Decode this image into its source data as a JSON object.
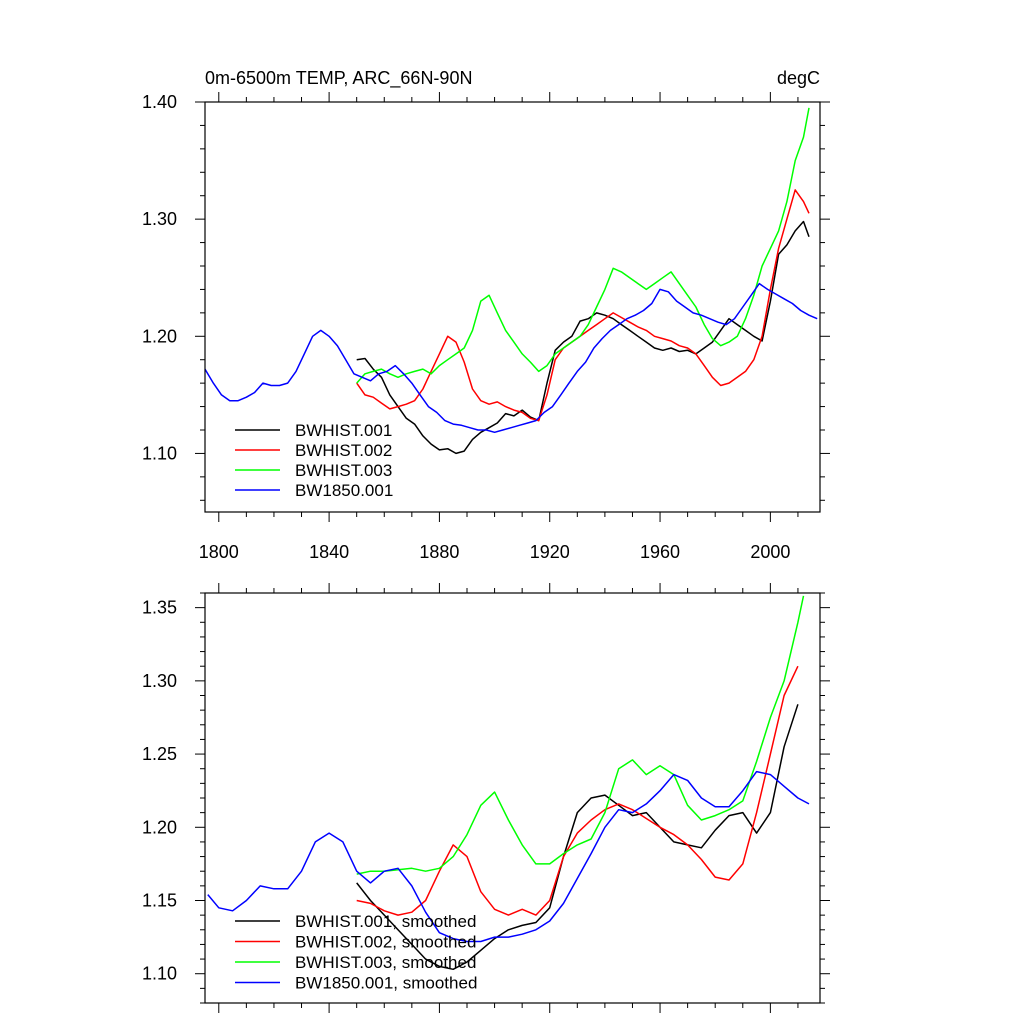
{
  "chart_data": [
    {
      "type": "line",
      "title": "0m-6500m TEMP, ARC_66N-90N",
      "units": "degC",
      "xlabel": "",
      "ylabel": "",
      "xlim": [
        1795,
        2018
      ],
      "ylim": [
        1.05,
        1.4
      ],
      "xticks": [
        1800,
        1840,
        1880,
        1920,
        1960,
        2000
      ],
      "xtick_labels": [
        "1800",
        "1840",
        "1880",
        "1920",
        "1960",
        "2000"
      ],
      "yticks": [
        1.1,
        1.2,
        1.3,
        1.4
      ],
      "ytick_labels": [
        "1.10",
        "1.20",
        "1.30",
        "1.40"
      ],
      "show_x_labels": true,
      "grid": false,
      "legend_position": "bottom-left",
      "series": [
        {
          "name": "BWHIST.001",
          "color": "#000000",
          "x": [
            1850,
            1853,
            1856,
            1859,
            1862,
            1865,
            1868,
            1871,
            1874,
            1877,
            1880,
            1883,
            1886,
            1889,
            1892,
            1895,
            1898,
            1901,
            1904,
            1907,
            1910,
            1913,
            1916,
            1919,
            1922,
            1925,
            1928,
            1931,
            1934,
            1937,
            1940,
            1943,
            1946,
            1949,
            1952,
            1955,
            1958,
            1961,
            1964,
            1967,
            1970,
            1973,
            1976,
            1979,
            1982,
            1985,
            1988,
            1991,
            1994,
            1997,
            2000,
            2003,
            2006,
            2009,
            2012,
            2014
          ],
          "y": [
            1.18,
            1.181,
            1.172,
            1.165,
            1.15,
            1.14,
            1.13,
            1.125,
            1.115,
            1.108,
            1.103,
            1.104,
            1.1,
            1.102,
            1.112,
            1.118,
            1.122,
            1.126,
            1.134,
            1.132,
            1.137,
            1.131,
            1.128,
            1.16,
            1.188,
            1.195,
            1.2,
            1.213,
            1.215,
            1.22,
            1.218,
            1.215,
            1.21,
            1.205,
            1.2,
            1.195,
            1.19,
            1.188,
            1.19,
            1.187,
            1.188,
            1.185,
            1.19,
            1.195,
            1.205,
            1.215,
            1.21,
            1.205,
            1.2,
            1.196,
            1.23,
            1.27,
            1.278,
            1.29,
            1.298,
            1.285
          ]
        },
        {
          "name": "BWHIST.002",
          "color": "#ff0000",
          "x": [
            1850,
            1853,
            1856,
            1859,
            1862,
            1865,
            1868,
            1871,
            1874,
            1877,
            1880,
            1883,
            1886,
            1889,
            1892,
            1895,
            1898,
            1901,
            1904,
            1907,
            1910,
            1913,
            1916,
            1919,
            1922,
            1925,
            1928,
            1931,
            1934,
            1937,
            1940,
            1943,
            1946,
            1949,
            1952,
            1955,
            1958,
            1961,
            1964,
            1967,
            1970,
            1973,
            1976,
            1979,
            1982,
            1985,
            1988,
            1991,
            1994,
            1997,
            2000,
            2003,
            2006,
            2009,
            2012,
            2014
          ],
          "y": [
            1.16,
            1.15,
            1.148,
            1.143,
            1.138,
            1.14,
            1.142,
            1.145,
            1.155,
            1.17,
            1.185,
            1.2,
            1.195,
            1.178,
            1.155,
            1.145,
            1.142,
            1.144,
            1.14,
            1.137,
            1.135,
            1.13,
            1.128,
            1.15,
            1.18,
            1.19,
            1.195,
            1.2,
            1.205,
            1.21,
            1.215,
            1.22,
            1.216,
            1.212,
            1.208,
            1.205,
            1.2,
            1.198,
            1.196,
            1.192,
            1.19,
            1.185,
            1.175,
            1.165,
            1.158,
            1.16,
            1.165,
            1.17,
            1.18,
            1.2,
            1.24,
            1.275,
            1.3,
            1.325,
            1.315,
            1.305
          ]
        },
        {
          "name": "BWHIST.003",
          "color": "#00ff00",
          "x": [
            1850,
            1853,
            1856,
            1859,
            1862,
            1865,
            1868,
            1871,
            1874,
            1877,
            1880,
            1883,
            1886,
            1889,
            1892,
            1895,
            1898,
            1901,
            1904,
            1907,
            1910,
            1913,
            1916,
            1919,
            1922,
            1925,
            1928,
            1931,
            1934,
            1937,
            1940,
            1943,
            1946,
            1949,
            1952,
            1955,
            1958,
            1961,
            1964,
            1967,
            1970,
            1973,
            1976,
            1979,
            1982,
            1985,
            1988,
            1991,
            1994,
            1997,
            2000,
            2003,
            2006,
            2009,
            2012,
            2014
          ],
          "y": [
            1.16,
            1.168,
            1.17,
            1.172,
            1.168,
            1.165,
            1.168,
            1.17,
            1.172,
            1.168,
            1.175,
            1.18,
            1.185,
            1.19,
            1.205,
            1.23,
            1.235,
            1.22,
            1.205,
            1.195,
            1.185,
            1.178,
            1.17,
            1.175,
            1.185,
            1.19,
            1.195,
            1.2,
            1.21,
            1.225,
            1.24,
            1.258,
            1.255,
            1.25,
            1.245,
            1.24,
            1.245,
            1.25,
            1.255,
            1.245,
            1.235,
            1.225,
            1.21,
            1.198,
            1.192,
            1.195,
            1.2,
            1.215,
            1.235,
            1.26,
            1.275,
            1.29,
            1.315,
            1.35,
            1.37,
            1.395
          ]
        },
        {
          "name": "BW1850.001",
          "color": "#0000ff",
          "x": [
            1795,
            1798,
            1801,
            1804,
            1807,
            1810,
            1813,
            1816,
            1819,
            1822,
            1825,
            1828,
            1831,
            1834,
            1837,
            1840,
            1843,
            1846,
            1849,
            1852,
            1855,
            1858,
            1861,
            1864,
            1867,
            1870,
            1873,
            1876,
            1879,
            1882,
            1885,
            1888,
            1891,
            1894,
            1897,
            1900,
            1903,
            1906,
            1909,
            1912,
            1915,
            1918,
            1921,
            1924,
            1927,
            1930,
            1933,
            1936,
            1939,
            1942,
            1945,
            1948,
            1951,
            1954,
            1957,
            1960,
            1963,
            1966,
            1969,
            1972,
            1975,
            1978,
            1981,
            1984,
            1987,
            1990,
            1993,
            1996,
            1999,
            2002,
            2005,
            2008,
            2011,
            2014,
            2017
          ],
          "y": [
            1.172,
            1.16,
            1.15,
            1.145,
            1.145,
            1.148,
            1.152,
            1.16,
            1.158,
            1.158,
            1.16,
            1.17,
            1.185,
            1.2,
            1.205,
            1.2,
            1.192,
            1.18,
            1.168,
            1.165,
            1.162,
            1.168,
            1.17,
            1.175,
            1.168,
            1.16,
            1.15,
            1.14,
            1.135,
            1.128,
            1.125,
            1.124,
            1.122,
            1.12,
            1.12,
            1.118,
            1.12,
            1.122,
            1.124,
            1.126,
            1.128,
            1.135,
            1.14,
            1.15,
            1.16,
            1.17,
            1.178,
            1.19,
            1.198,
            1.205,
            1.21,
            1.215,
            1.218,
            1.222,
            1.228,
            1.24,
            1.238,
            1.23,
            1.225,
            1.22,
            1.218,
            1.215,
            1.212,
            1.21,
            1.215,
            1.225,
            1.235,
            1.245,
            1.24,
            1.236,
            1.232,
            1.228,
            1.222,
            1.218,
            1.215
          ]
        }
      ]
    },
    {
      "type": "line",
      "title": "",
      "xlabel": "",
      "ylabel": "",
      "xlim": [
        1795,
        2018
      ],
      "ylim": [
        1.08,
        1.36
      ],
      "xticks": [
        1800,
        1840,
        1880,
        1920,
        1960,
        2000
      ],
      "xtick_labels": [],
      "yticks": [
        1.1,
        1.15,
        1.2,
        1.25,
        1.3,
        1.35
      ],
      "ytick_labels": [
        "1.10",
        "1.15",
        "1.20",
        "1.25",
        "1.30",
        "1.35"
      ],
      "show_x_labels": false,
      "grid": false,
      "legend_position": "bottom-left",
      "series": [
        {
          "name": "BWHIST.001, smoothed",
          "color": "#000000",
          "x": [
            1850,
            1855,
            1860,
            1865,
            1870,
            1875,
            1880,
            1885,
            1890,
            1895,
            1900,
            1905,
            1910,
            1915,
            1920,
            1925,
            1930,
            1935,
            1940,
            1945,
            1950,
            1955,
            1960,
            1965,
            1970,
            1975,
            1980,
            1985,
            1990,
            1995,
            2000,
            2005,
            2010
          ],
          "y": [
            1.162,
            1.15,
            1.14,
            1.13,
            1.12,
            1.11,
            1.105,
            1.103,
            1.108,
            1.116,
            1.124,
            1.13,
            1.133,
            1.135,
            1.145,
            1.18,
            1.21,
            1.22,
            1.222,
            1.215,
            1.208,
            1.21,
            1.2,
            1.19,
            1.188,
            1.186,
            1.198,
            1.208,
            1.21,
            1.196,
            1.21,
            1.255,
            1.284
          ]
        },
        {
          "name": "BWHIST.002, smoothed",
          "color": "#ff0000",
          "x": [
            1850,
            1855,
            1860,
            1865,
            1870,
            1875,
            1880,
            1885,
            1890,
            1895,
            1900,
            1905,
            1910,
            1915,
            1920,
            1925,
            1930,
            1935,
            1940,
            1945,
            1950,
            1955,
            1960,
            1965,
            1970,
            1975,
            1980,
            1985,
            1990,
            1995,
            2000,
            2005,
            2010
          ],
          "y": [
            1.15,
            1.148,
            1.143,
            1.14,
            1.142,
            1.15,
            1.17,
            1.188,
            1.18,
            1.156,
            1.144,
            1.14,
            1.144,
            1.14,
            1.15,
            1.18,
            1.196,
            1.205,
            1.212,
            1.216,
            1.212,
            1.206,
            1.2,
            1.195,
            1.188,
            1.178,
            1.166,
            1.164,
            1.175,
            1.21,
            1.25,
            1.29,
            1.31
          ]
        },
        {
          "name": "BWHIST.003, smoothed",
          "color": "#00ff00",
          "x": [
            1850,
            1855,
            1860,
            1865,
            1870,
            1875,
            1880,
            1885,
            1890,
            1895,
            1900,
            1905,
            1910,
            1915,
            1920,
            1925,
            1930,
            1935,
            1940,
            1945,
            1950,
            1955,
            1960,
            1965,
            1970,
            1975,
            1980,
            1985,
            1990,
            1995,
            2000,
            2005,
            2010,
            2012
          ],
          "y": [
            1.168,
            1.17,
            1.17,
            1.171,
            1.172,
            1.17,
            1.172,
            1.18,
            1.195,
            1.215,
            1.224,
            1.205,
            1.188,
            1.175,
            1.175,
            1.182,
            1.188,
            1.192,
            1.21,
            1.24,
            1.246,
            1.236,
            1.242,
            1.236,
            1.215,
            1.205,
            1.208,
            1.212,
            1.218,
            1.245,
            1.275,
            1.3,
            1.34,
            1.358
          ]
        },
        {
          "name": "BW1850.001, smoothed",
          "color": "#0000ff",
          "x": [
            1796,
            1800,
            1805,
            1810,
            1815,
            1820,
            1825,
            1830,
            1835,
            1840,
            1845,
            1850,
            1855,
            1860,
            1865,
            1870,
            1875,
            1880,
            1885,
            1890,
            1895,
            1900,
            1905,
            1910,
            1915,
            1920,
            1925,
            1930,
            1935,
            1940,
            1945,
            1950,
            1955,
            1960,
            1965,
            1970,
            1975,
            1980,
            1985,
            1990,
            1995,
            2000,
            2005,
            2010,
            2014
          ],
          "y": [
            1.154,
            1.145,
            1.143,
            1.15,
            1.16,
            1.158,
            1.158,
            1.17,
            1.19,
            1.196,
            1.19,
            1.17,
            1.162,
            1.17,
            1.172,
            1.16,
            1.142,
            1.128,
            1.124,
            1.122,
            1.122,
            1.125,
            1.125,
            1.127,
            1.13,
            1.136,
            1.148,
            1.165,
            1.182,
            1.2,
            1.212,
            1.21,
            1.216,
            1.225,
            1.236,
            1.232,
            1.22,
            1.214,
            1.214,
            1.225,
            1.238,
            1.236,
            1.228,
            1.22,
            1.216
          ]
        }
      ]
    }
  ]
}
